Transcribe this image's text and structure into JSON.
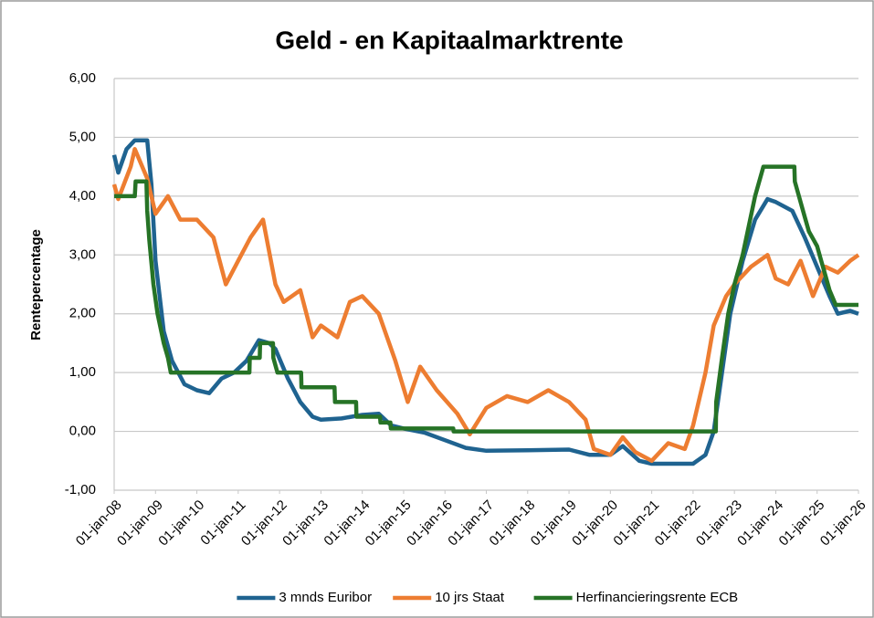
{
  "chart_data": {
    "type": "line",
    "title": "Geld - en Kapitaalmarktrente",
    "y_label": "Rentepercentage",
    "xlim": [
      2008,
      2026
    ],
    "xticks": [
      {
        "value": 2008,
        "label": "01-jan-08"
      },
      {
        "value": 2009,
        "label": "01-jan-09"
      },
      {
        "value": 2010,
        "label": "01-jan-10"
      },
      {
        "value": 2011,
        "label": "01-jan-11"
      },
      {
        "value": 2012,
        "label": "01-jan-12"
      },
      {
        "value": 2013,
        "label": "01-jan-13"
      },
      {
        "value": 2014,
        "label": "01-jan-14"
      },
      {
        "value": 2015,
        "label": "01-jan-15"
      },
      {
        "value": 2016,
        "label": "01-jan-16"
      },
      {
        "value": 2017,
        "label": "01-jan-17"
      },
      {
        "value": 2018,
        "label": "01-jan-18"
      },
      {
        "value": 2019,
        "label": "01-jan-19"
      },
      {
        "value": 2020,
        "label": "01-jan-20"
      },
      {
        "value": 2021,
        "label": "01-jan-21"
      },
      {
        "value": 2022,
        "label": "01-jan-22"
      },
      {
        "value": 2023,
        "label": "01-jan-23"
      },
      {
        "value": 2024,
        "label": "01-jan-24"
      },
      {
        "value": 2025,
        "label": "01-jan-25"
      },
      {
        "value": 2026,
        "label": "01-jan-26"
      }
    ],
    "ylim": [
      -1,
      6
    ],
    "yticks": [
      {
        "value": -1,
        "label": "-1,00"
      },
      {
        "value": 0,
        "label": "0,00"
      },
      {
        "value": 1,
        "label": "1,00"
      },
      {
        "value": 2,
        "label": "2,00"
      },
      {
        "value": 3,
        "label": "3,00"
      },
      {
        "value": 4,
        "label": "4,00"
      },
      {
        "value": 5,
        "label": "5,00"
      },
      {
        "value": 6,
        "label": "6,00"
      }
    ],
    "grid": true,
    "legend": "bottom",
    "series": [
      {
        "name": "3 mnds Euribor",
        "color": "#1f6390",
        "x": [
          2008.0,
          2008.1,
          2008.3,
          2008.5,
          2008.8,
          2008.9,
          2009.0,
          2009.2,
          2009.4,
          2009.7,
          2010.0,
          2010.3,
          2010.6,
          2010.9,
          2011.2,
          2011.5,
          2011.75,
          2011.9,
          2012.2,
          2012.5,
          2012.8,
          2013.0,
          2013.5,
          2014.0,
          2014.4,
          2014.7,
          2015.0,
          2015.5,
          2016.0,
          2016.5,
          2017.0,
          2018.0,
          2019.0,
          2019.5,
          2020.0,
          2020.3,
          2020.7,
          2021.0,
          2021.5,
          2022.0,
          2022.3,
          2022.5,
          2022.7,
          2022.9,
          2023.2,
          2023.5,
          2023.8,
          2024.0,
          2024.4,
          2024.7,
          2025.0,
          2025.3,
          2025.5,
          2025.8,
          2026.0
        ],
        "values": [
          4.7,
          4.4,
          4.8,
          4.95,
          4.95,
          4.2,
          2.9,
          1.7,
          1.2,
          0.8,
          0.7,
          0.65,
          0.9,
          1.0,
          1.2,
          1.55,
          1.5,
          1.4,
          0.9,
          0.5,
          0.25,
          0.2,
          0.22,
          0.28,
          0.3,
          0.1,
          0.05,
          -0.02,
          -0.15,
          -0.28,
          -0.33,
          -0.32,
          -0.31,
          -0.4,
          -0.4,
          -0.25,
          -0.5,
          -0.55,
          -0.55,
          -0.55,
          -0.4,
          0.0,
          1.0,
          2.0,
          2.9,
          3.6,
          3.95,
          3.9,
          3.75,
          3.3,
          2.8,
          2.3,
          2.0,
          2.05,
          2.0
        ]
      },
      {
        "name": "10 jrs Staat",
        "color": "#ed7d31",
        "x": [
          2008.0,
          2008.1,
          2008.4,
          2008.5,
          2008.8,
          2009.0,
          2009.3,
          2009.6,
          2010.0,
          2010.4,
          2010.7,
          2011.0,
          2011.3,
          2011.6,
          2011.9,
          2012.1,
          2012.5,
          2012.8,
          2013.0,
          2013.4,
          2013.7,
          2014.0,
          2014.4,
          2014.8,
          2015.1,
          2015.4,
          2015.8,
          2016.3,
          2016.6,
          2017.0,
          2017.5,
          2018.0,
          2018.5,
          2019.0,
          2019.4,
          2019.6,
          2020.0,
          2020.3,
          2020.6,
          2021.0,
          2021.4,
          2021.8,
          2022.0,
          2022.3,
          2022.5,
          2022.8,
          2023.0,
          2023.4,
          2023.8,
          2024.0,
          2024.3,
          2024.6,
          2024.9,
          2025.2,
          2025.5,
          2025.8,
          2026.0
        ],
        "values": [
          4.2,
          3.95,
          4.5,
          4.8,
          4.3,
          3.7,
          4.0,
          3.6,
          3.6,
          3.3,
          2.5,
          2.9,
          3.3,
          3.6,
          2.5,
          2.2,
          2.4,
          1.6,
          1.8,
          1.6,
          2.2,
          2.3,
          2.0,
          1.2,
          0.5,
          1.1,
          0.7,
          0.3,
          -0.05,
          0.4,
          0.6,
          0.5,
          0.7,
          0.5,
          0.2,
          -0.3,
          -0.4,
          -0.1,
          -0.35,
          -0.5,
          -0.2,
          -0.3,
          0.1,
          1.0,
          1.8,
          2.3,
          2.5,
          2.8,
          3.0,
          2.6,
          2.5,
          2.9,
          2.3,
          2.8,
          2.7,
          2.9,
          3.0
        ]
      },
      {
        "name": "Herfinancieringsrente ECB",
        "color": "#267326",
        "x": [
          2008.0,
          2008.5,
          2008.52,
          2008.78,
          2008.8,
          2008.85,
          2008.95,
          2009.05,
          2009.2,
          2009.3,
          2009.37,
          2011.27,
          2011.28,
          2011.52,
          2011.53,
          2011.84,
          2011.85,
          2011.95,
          2012.52,
          2012.53,
          2013.33,
          2013.34,
          2013.85,
          2013.86,
          2014.43,
          2014.44,
          2014.68,
          2014.69,
          2016.2,
          2016.21,
          2022.55,
          2022.56,
          2022.7,
          2022.85,
          2023.0,
          2023.2,
          2023.35,
          2023.5,
          2023.7,
          2024.45,
          2024.46,
          2024.7,
          2024.8,
          2025.0,
          2025.1,
          2025.2,
          2025.3,
          2025.45,
          2026.0
        ],
        "values": [
          4.0,
          4.0,
          4.25,
          4.25,
          3.75,
          3.25,
          2.5,
          2.0,
          1.5,
          1.25,
          1.0,
          1.0,
          1.25,
          1.25,
          1.5,
          1.5,
          1.25,
          1.0,
          1.0,
          0.75,
          0.75,
          0.5,
          0.5,
          0.25,
          0.25,
          0.15,
          0.15,
          0.05,
          0.05,
          0,
          0,
          0.5,
          1.25,
          2.0,
          2.5,
          3.0,
          3.5,
          4.0,
          4.5,
          4.5,
          4.25,
          3.65,
          3.4,
          3.15,
          2.9,
          2.65,
          2.4,
          2.15,
          2.15
        ]
      }
    ]
  }
}
